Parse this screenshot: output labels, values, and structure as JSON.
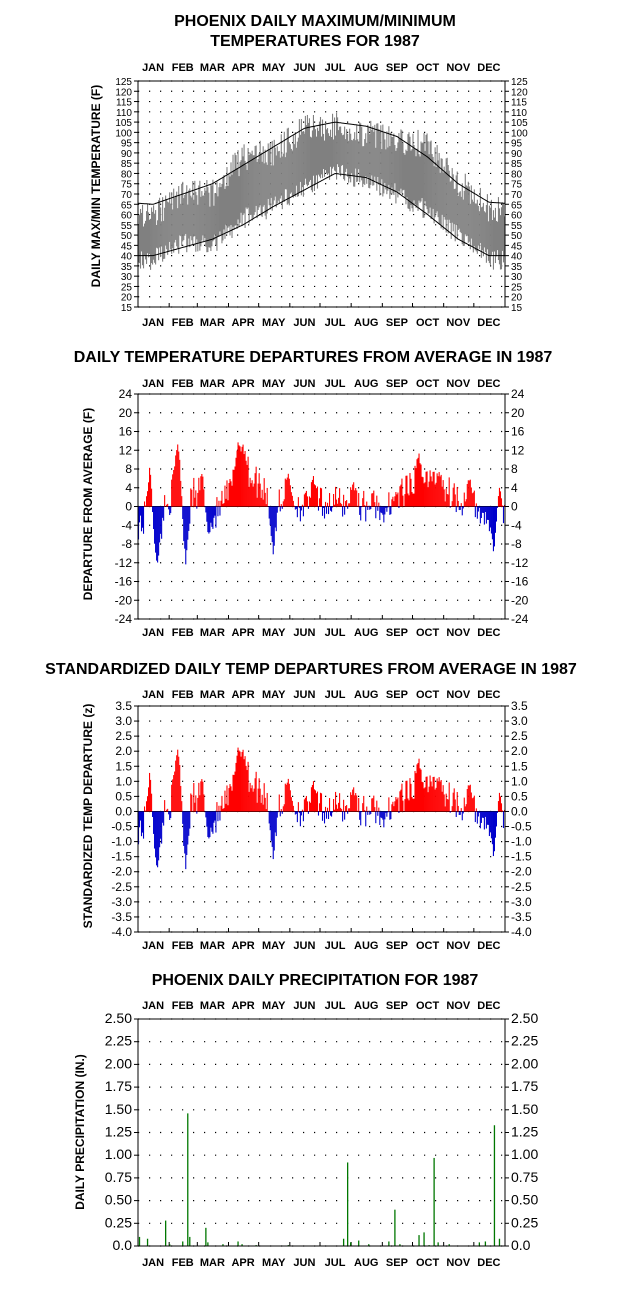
{
  "months": [
    "JAN",
    "FEB",
    "MAR",
    "APR",
    "MAY",
    "JUN",
    "JUL",
    "AUG",
    "SEP",
    "OCT",
    "NOV",
    "DEC"
  ],
  "colors": {
    "positive": "#ff0000",
    "negative": "#0000cc",
    "range_band": "#808080",
    "normals": "#000000",
    "precip": "#007700"
  },
  "chart_data": [
    {
      "type": "area",
      "title_line1": "PHOENIX DAILY MAXIMUM/MINIMUM",
      "title_line2": "TEMPERATURES FOR 1987",
      "ylabel": "DAILY MAX/MIN TEMPERATURE (F)",
      "ylim": [
        15,
        125
      ],
      "yticks": [
        "15",
        "20",
        "25",
        "30",
        "35",
        "40",
        "45",
        "50",
        "55",
        "60",
        "65",
        "70",
        "75",
        "80",
        "85",
        "90",
        "95",
        "100",
        "105",
        "110",
        "115",
        "120",
        "125"
      ],
      "x": "day of year 1-365 (monthly anchors: mid-JAN ... mid-DEC)",
      "normal_high_monthly": [
        65,
        70,
        75,
        84,
        93,
        102,
        105,
        103,
        98,
        88,
        75,
        66
      ],
      "normal_low_monthly": [
        40,
        44,
        48,
        55,
        64,
        72,
        80,
        78,
        71,
        60,
        48,
        40
      ],
      "actual_high_monthly": [
        60,
        70,
        70,
        88,
        90,
        102,
        103,
        99,
        97,
        93,
        76,
        63
      ],
      "actual_low_monthly": [
        38,
        46,
        45,
        58,
        64,
        73,
        80,
        77,
        70,
        62,
        50,
        38
      ]
    },
    {
      "type": "bar",
      "title": "DAILY TEMPERATURE DEPARTURES FROM AVERAGE IN 1987",
      "ylabel": "DEPARTURE FROM AVERAGE (F)",
      "ylim": [
        -24,
        24
      ],
      "yticks": [
        "24",
        "20",
        "16",
        "12",
        "8",
        "4",
        "0",
        "-4",
        "-8",
        "-12",
        "-16",
        "-20",
        "-24"
      ],
      "x": "day of year 1-365",
      "values_monthly_profile": [
        -4,
        6,
        -3,
        8,
        2,
        0,
        1,
        0,
        2,
        6,
        2,
        -3
      ],
      "peaks": [
        [
          12,
          10
        ],
        [
          20,
          -14
        ],
        [
          40,
          15
        ],
        [
          48,
          -15
        ],
        [
          65,
          10
        ],
        [
          70,
          -6
        ],
        [
          100,
          15
        ],
        [
          105,
          14
        ],
        [
          135,
          -12
        ],
        [
          150,
          8
        ],
        [
          175,
          7
        ],
        [
          215,
          6
        ],
        [
          245,
          -4
        ],
        [
          280,
          12
        ],
        [
          300,
          8
        ],
        [
          330,
          7
        ],
        [
          355,
          -12
        ],
        [
          360,
          5
        ]
      ]
    },
    {
      "type": "bar",
      "title": "STANDARDIZED DAILY TEMP DEPARTURES FROM AVERAGE IN 1987",
      "ylabel": "STANDARDIZED TEMP DEPARTURE (z)",
      "ylim": [
        -4.0,
        3.5
      ],
      "yticks": [
        "3.5",
        "3.0",
        "2.5",
        "2.0",
        "1.5",
        "1.0",
        "0.5",
        "0.0",
        "-0.5",
        "-1.0",
        "-1.5",
        "-2.0",
        "-2.5",
        "-3.0",
        "-3.5",
        "-4.0"
      ],
      "x": "day of year 1-365",
      "scale_factor": 0.155
    },
    {
      "type": "bar",
      "title": "PHOENIX DAILY PRECIPITATION FOR 1987",
      "ylabel": "DAILY PRECIPITATION (IN.)",
      "ylim": [
        0,
        2.5
      ],
      "yticks": [
        "0.0",
        "0.25",
        "0.50",
        "0.75",
        "1.00",
        "1.25",
        "1.50",
        "1.75",
        "2.00",
        "2.25",
        "2.50"
      ],
      "x": "day of year 1-365",
      "rain_days": [
        [
          2,
          0.1
        ],
        [
          10,
          0.08
        ],
        [
          28,
          0.28
        ],
        [
          32,
          0.02
        ],
        [
          45,
          0.05
        ],
        [
          50,
          1.46
        ],
        [
          52,
          0.1
        ],
        [
          68,
          0.2
        ],
        [
          70,
          0.04
        ],
        [
          85,
          0.02
        ],
        [
          100,
          0.05
        ],
        [
          104,
          0.02
        ],
        [
          118,
          0.01
        ],
        [
          150,
          0.01
        ],
        [
          205,
          0.08
        ],
        [
          209,
          0.92
        ],
        [
          212,
          0.04
        ],
        [
          220,
          0.06
        ],
        [
          230,
          0.02
        ],
        [
          250,
          0.05
        ],
        [
          256,
          0.4
        ],
        [
          261,
          0.02
        ],
        [
          280,
          0.12
        ],
        [
          285,
          0.15
        ],
        [
          290,
          0.01
        ],
        [
          295,
          0.97
        ],
        [
          299,
          0.04
        ],
        [
          310,
          0.02
        ],
        [
          340,
          0.04
        ],
        [
          346,
          0.05
        ],
        [
          355,
          1.33
        ],
        [
          360,
          0.08
        ]
      ]
    }
  ]
}
